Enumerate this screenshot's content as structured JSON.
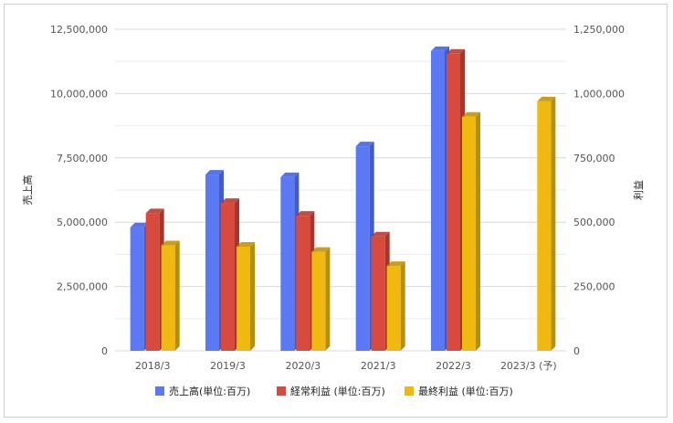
{
  "chart_data": {
    "type": "bar",
    "categories": [
      "2018/3",
      "2019/3",
      "2020/3",
      "2021/3",
      "2022/3",
      "2023/3 (予)"
    ],
    "y_left": {
      "label": "売上高",
      "ticks": [
        "0",
        "2,500,000",
        "5,000,000",
        "7,500,000",
        "10,000,000",
        "12,500,000"
      ],
      "ylim": [
        0,
        12500000
      ]
    },
    "y_right": {
      "label": "利益",
      "ticks": [
        "0",
        "250,000",
        "500,000",
        "750,000",
        "1,000,000",
        "1,250,000"
      ],
      "ylim": [
        0,
        1250000
      ]
    },
    "series": [
      {
        "name": "売上高(単位:百万)",
        "axis": "left",
        "color": "#5b79f5",
        "side": "#3f5bd0",
        "values": [
          4800000,
          6850000,
          6750000,
          7950000,
          11650000,
          null
        ]
      },
      {
        "name": "経常利益 (単位:百万)",
        "axis": "right",
        "color": "#d84a3d",
        "side": "#a8342a",
        "values": [
          535000,
          575000,
          525000,
          445000,
          1155000,
          null
        ]
      },
      {
        "name": "最終利益 (単位:百万)",
        "axis": "right",
        "color": "#f0b90f",
        "side": "#b88d08",
        "values": [
          410000,
          405000,
          385000,
          330000,
          910000,
          970000
        ]
      }
    ],
    "grid": true,
    "legend_position": "bottom"
  }
}
